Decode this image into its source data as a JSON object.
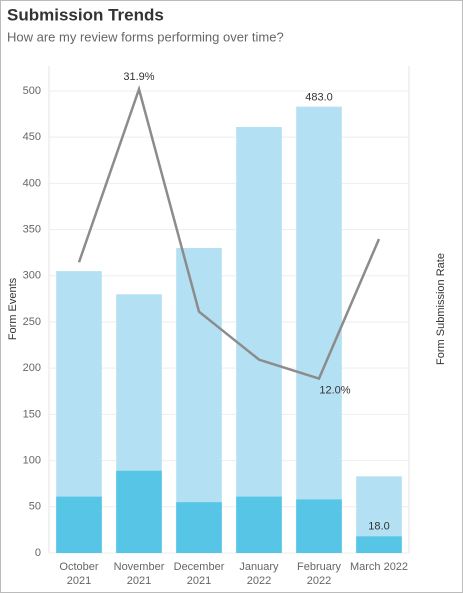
{
  "chart_data": {
    "type": "bar",
    "title": "Submission Trends",
    "subtitle": "How are my review forms performing over time?",
    "y_label": "Form Events",
    "y2_label": "Form Submission Rate",
    "categories": [
      "October 2021",
      "November 2021",
      "December 2021",
      "January 2022",
      "February 2022",
      "March 2022"
    ],
    "series": [
      {
        "type": "bar",
        "color": "#b3e0f2",
        "values": [
          305,
          280,
          330,
          461,
          483,
          83
        ],
        "value_labels": [
          null,
          null,
          null,
          null,
          "483.0",
          null
        ]
      },
      {
        "type": "bar",
        "color": "#56c5e6",
        "values": [
          61,
          89,
          55,
          61,
          58,
          18
        ],
        "value_labels": [
          null,
          null,
          null,
          null,
          null,
          "18.0"
        ]
      },
      {
        "type": "line",
        "axis": "y2",
        "color": "#8c8c8c",
        "values": [
          20.0,
          31.9,
          16.6,
          13.3,
          12.0,
          21.6
        ],
        "value_labels": [
          null,
          "31.9%",
          null,
          null,
          "12.0%",
          null
        ]
      }
    ],
    "ylim": [
      0,
      527
    ],
    "yticks": [
      0,
      50,
      100,
      150,
      200,
      250,
      300,
      350,
      400,
      450,
      500
    ],
    "y2lim": [
      0,
      33.5
    ],
    "grid": true
  }
}
